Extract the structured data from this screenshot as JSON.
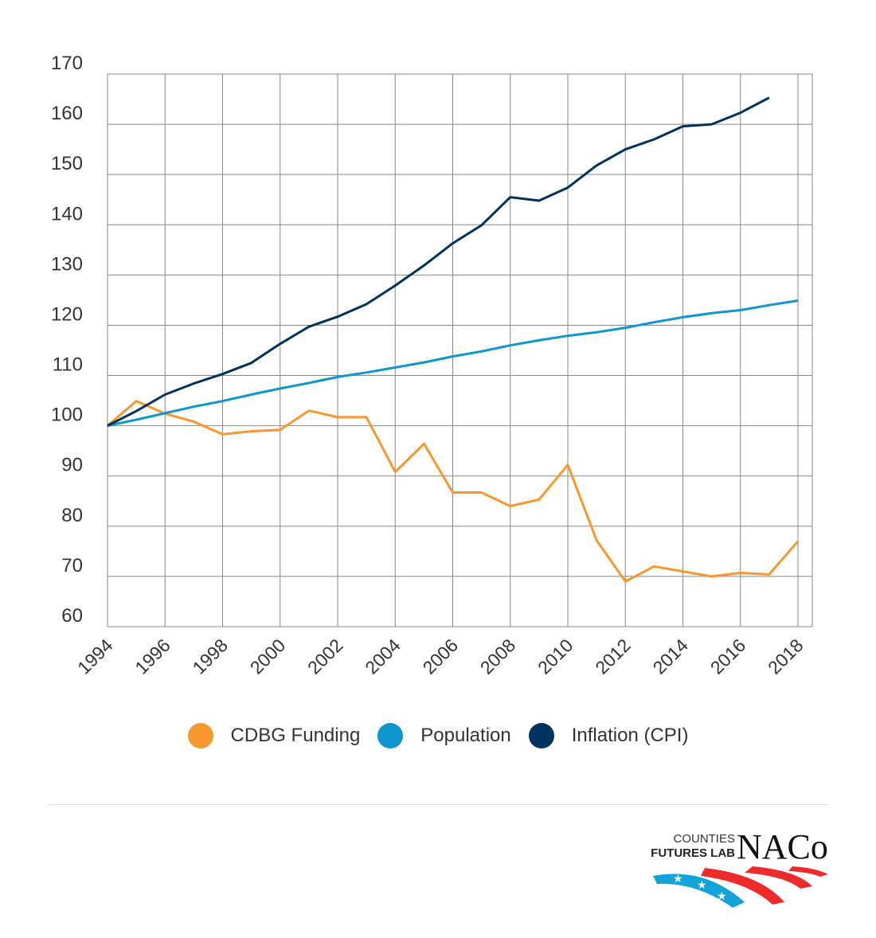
{
  "chart_data": {
    "type": "line",
    "x": [
      1994,
      1995,
      1996,
      1997,
      1998,
      1999,
      2000,
      2001,
      2002,
      2003,
      2004,
      2005,
      2006,
      2007,
      2008,
      2009,
      2010,
      2011,
      2012,
      2013,
      2014,
      2015,
      2016,
      2017,
      2018
    ],
    "xticks": [
      "1994",
      "1996",
      "1998",
      "2000",
      "2002",
      "2004",
      "2006",
      "2008",
      "2010",
      "2012",
      "2014",
      "2016",
      "2018"
    ],
    "yticks": [
      "60",
      "70",
      "80",
      "90",
      "100",
      "110",
      "120",
      "130",
      "140",
      "150",
      "160",
      "170"
    ],
    "ylim": [
      60,
      170
    ],
    "xlim": [
      1994,
      2018
    ],
    "grid": true,
    "legend_position": "bottom",
    "series": [
      {
        "name": "CDBG Funding",
        "color": "#f7982f",
        "values": [
          100,
          104.9,
          102.4,
          100.8,
          98.3,
          98.9,
          99.2,
          103,
          101.7,
          101.7,
          90.8,
          96.4,
          86.7,
          86.7,
          84,
          85.3,
          92.2,
          77.2,
          69,
          72,
          71,
          70,
          70.7,
          70.4,
          77
        ]
      },
      {
        "name": "Population",
        "color": "#0e97cf",
        "values": [
          100,
          101.2,
          102.5,
          103.8,
          104.9,
          106.2,
          107.4,
          108.5,
          109.7,
          110.6,
          111.6,
          112.6,
          113.8,
          114.8,
          116,
          117,
          117.9,
          118.6,
          119.5,
          120.6,
          121.6,
          122.4,
          123,
          124,
          124.9
        ]
      },
      {
        "name": "Inflation (CPI)",
        "color": "#00325f",
        "values": [
          100,
          102.9,
          106.2,
          108.4,
          110.3,
          112.5,
          116.3,
          119.7,
          121.7,
          124.2,
          127.9,
          131.9,
          136.3,
          139.9,
          145.5,
          144.8,
          147.4,
          151.8,
          155,
          157,
          159.6,
          160,
          162.3,
          165.3,
          null
        ]
      }
    ]
  },
  "logo": {
    "line1": "COUNTIES",
    "line2": "FUTURES LAB",
    "brand": "NACo"
  }
}
